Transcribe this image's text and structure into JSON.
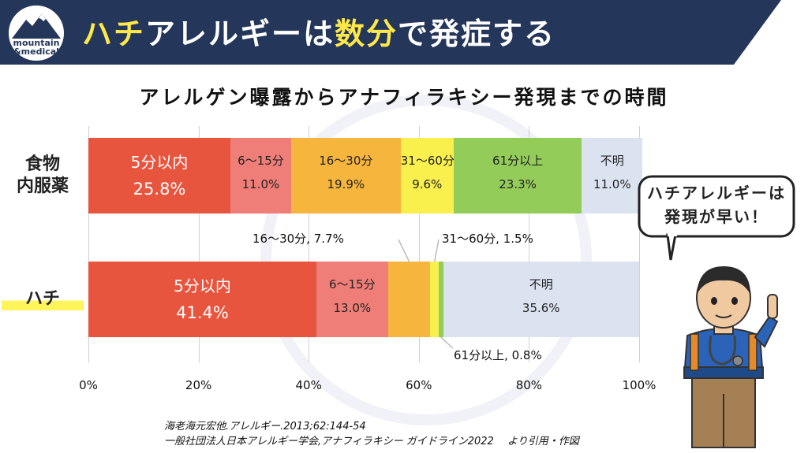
{
  "header": {
    "title_parts": [
      "ハチ",
      "アレルギーは",
      "数分",
      "で発症する"
    ],
    "logo_text": "mountain\n&medical",
    "bg_color": "#24365a",
    "highlight_color": "#ffe94a"
  },
  "chart_data": {
    "type": "bar",
    "orientation": "horizontal",
    "stacked": true,
    "title": "アレルゲン曝露からアナフィラキシー発現までの時間",
    "categories": [
      "食物内服薬",
      "ハチ"
    ],
    "category_labels": [
      [
        "食物",
        "内服薬"
      ],
      [
        "ハチ"
      ]
    ],
    "series": [
      {
        "name": "5分以内",
        "color": "#e8553e",
        "values": [
          25.8,
          41.4
        ]
      },
      {
        "name": "6～15分",
        "color": "#ef7e78",
        "values": [
          11.0,
          13.0
        ]
      },
      {
        "name": "16～30分",
        "color": "#f6b53c",
        "values": [
          19.9,
          7.7
        ]
      },
      {
        "name": "31～60分",
        "color": "#f9f04d",
        "values": [
          9.6,
          1.5
        ]
      },
      {
        "name": "61分以上",
        "color": "#94cc5a",
        "values": [
          23.3,
          0.8
        ]
      },
      {
        "name": "不明",
        "color": "#dbe3f1",
        "values": [
          11.0,
          35.6
        ]
      }
    ],
    "value_labels": [
      [
        "25.8%",
        "11.0%",
        "19.9%",
        "9.6%",
        "23.3%",
        "11.0%"
      ],
      [
        "41.4%",
        "13.0%",
        "",
        "",
        "",
        "35.6%"
      ]
    ],
    "callouts": [
      "16～30分, 7.7%",
      "31～60分, 1.5%",
      "61分以上, 0.8%"
    ],
    "xlim": [
      0,
      100
    ],
    "xticks": [
      "0%",
      "20%",
      "40%",
      "60%",
      "80%",
      "100%"
    ],
    "grid": true
  },
  "bubble": {
    "line1": "ハチアレルギーは",
    "line2": "発現が早い！"
  },
  "citations": [
    "海老海元宏他.アレルギー.2013;62:144-54",
    "一般社団法人日本アレルギー学会,アナフィラキシー ガイドライン2022　 より引用・作図"
  ]
}
